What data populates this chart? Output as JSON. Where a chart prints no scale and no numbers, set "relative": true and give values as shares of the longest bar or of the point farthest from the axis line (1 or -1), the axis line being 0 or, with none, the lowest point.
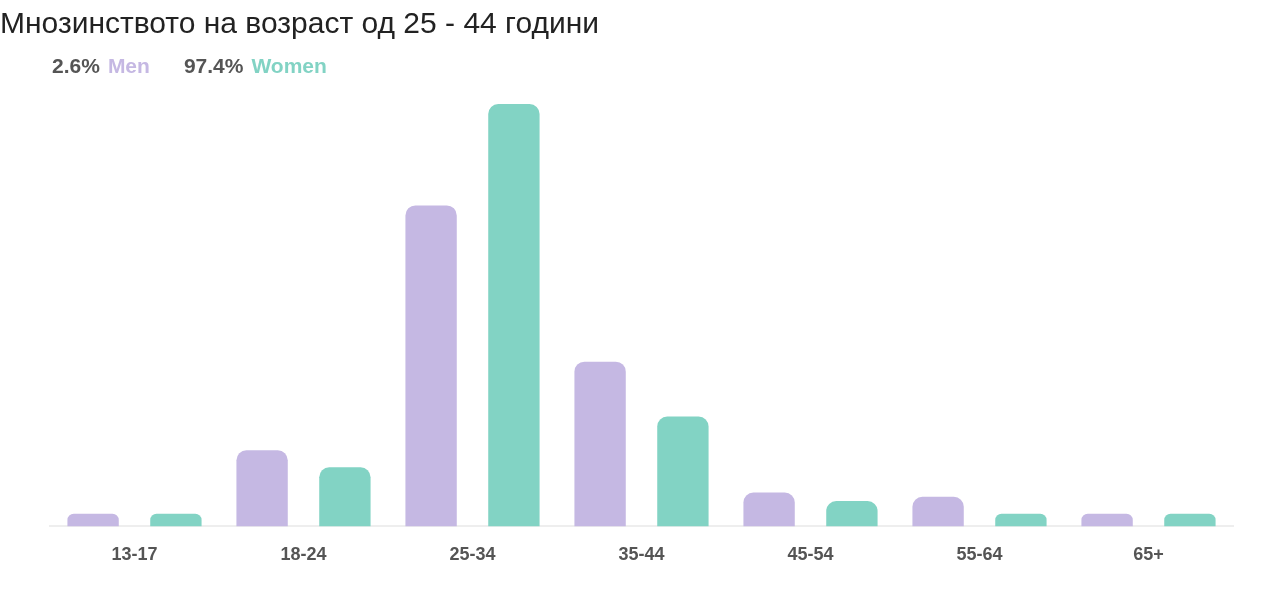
{
  "chart_data": {
    "type": "bar",
    "title": "Мнозинството на возраст од 25 - 44 години",
    "relative": true,
    "legend": "top left",
    "grid": false,
    "categories": [
      "13-17",
      "18-24",
      "25-34",
      "35-44",
      "45-54",
      "55-64",
      "65+"
    ],
    "annotations": [
      "2.6%",
      "97.4%"
    ],
    "series": [
      {
        "name": "Men",
        "color": "#c5b8e3",
        "values": [
          0.03,
          0.18,
          0.76,
          0.39,
          0.08,
          0.07,
          0.03
        ]
      },
      {
        "name": "Women",
        "color": "#82d3c4",
        "values": [
          0.03,
          0.14,
          1,
          0.26,
          0.06,
          0.03,
          0.03
        ]
      }
    ]
  }
}
